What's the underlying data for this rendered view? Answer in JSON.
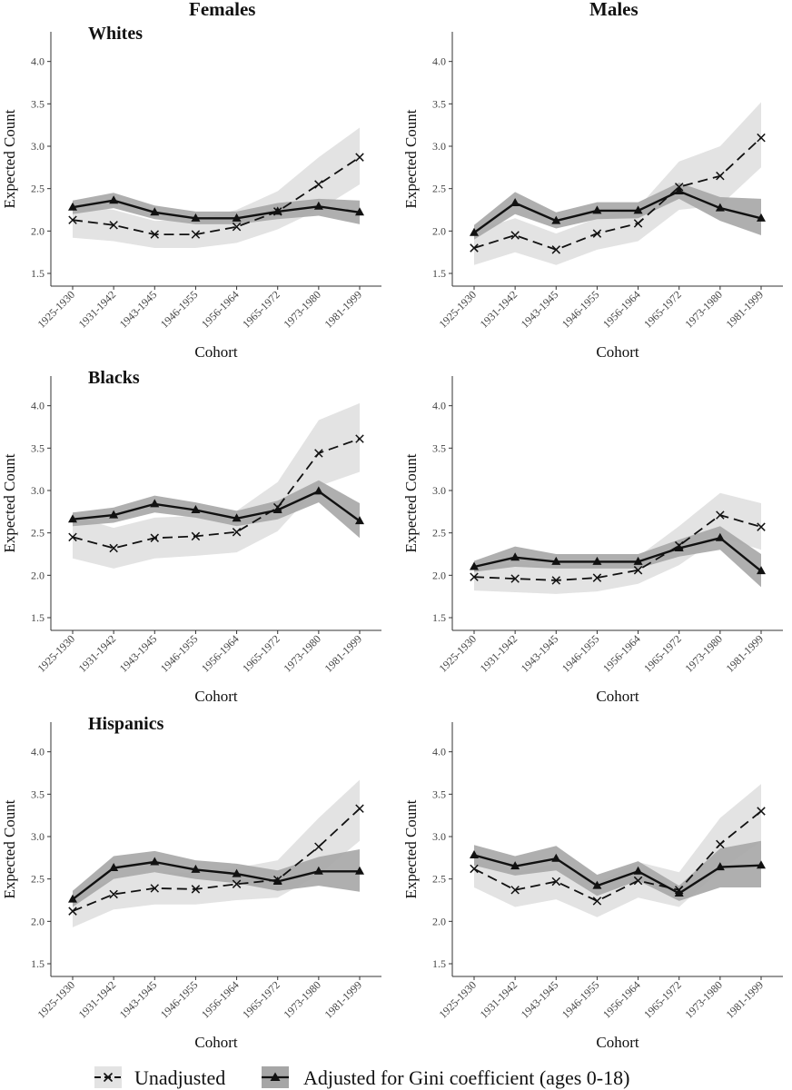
{
  "columns": [
    "Females",
    "Males"
  ],
  "groups": [
    "Whites",
    "Blacks",
    "Hispanics"
  ],
  "legend": {
    "unadjusted": "Unadjusted",
    "adjusted": "Adjusted for Gini coefficient (ages 0-18)"
  },
  "colors": {
    "unadjusted_band": "#e3e3e3",
    "adjusted_band": "#a6a6a6",
    "line": "#111111"
  },
  "chart_data": [
    {
      "type": "line",
      "group": "Whites",
      "sex": "Females",
      "title": "Whites",
      "xlabel": "Cohort",
      "ylabel": "Expected Count",
      "ylim": [
        1.35,
        4.35
      ],
      "yticks": [
        1.5,
        2.0,
        2.5,
        3.0,
        3.5,
        4.0
      ],
      "categories": [
        "1925-1930",
        "1931-1942",
        "1943-1945",
        "1946-1955",
        "1956-1964",
        "1965-1972",
        "1973-1980",
        "1981-1999"
      ],
      "series": [
        {
          "name": "Unadjusted",
          "values": [
            2.13,
            2.07,
            1.96,
            1.96,
            2.05,
            2.23,
            2.55,
            2.87
          ],
          "lower": [
            1.92,
            1.88,
            1.8,
            1.8,
            1.86,
            2.02,
            2.25,
            2.55
          ],
          "upper": [
            2.3,
            2.25,
            2.12,
            2.13,
            2.25,
            2.47,
            2.87,
            3.22
          ]
        },
        {
          "name": "Adjusted for Gini coefficient (ages 0-18)",
          "values": [
            2.28,
            2.36,
            2.22,
            2.15,
            2.15,
            2.23,
            2.29,
            2.22
          ],
          "lower": [
            2.2,
            2.27,
            2.14,
            2.08,
            2.08,
            2.14,
            2.18,
            2.08
          ],
          "upper": [
            2.36,
            2.45,
            2.3,
            2.23,
            2.23,
            2.33,
            2.38,
            2.36
          ]
        }
      ]
    },
    {
      "type": "line",
      "group": "Whites",
      "sex": "Males",
      "title": "",
      "xlabel": "Cohort",
      "ylabel": "Expected Count",
      "ylim": [
        1.35,
        4.35
      ],
      "yticks": [
        1.5,
        2.0,
        2.5,
        3.0,
        3.5,
        4.0
      ],
      "categories": [
        "1925-1930",
        "1931-1942",
        "1943-1945",
        "1946-1955",
        "1956-1964",
        "1965-1972",
        "1973-1980",
        "1981-1999"
      ],
      "series": [
        {
          "name": "Unadjusted",
          "values": [
            1.8,
            1.95,
            1.78,
            1.97,
            2.09,
            2.52,
            2.65,
            3.1
          ],
          "lower": [
            1.6,
            1.75,
            1.6,
            1.78,
            1.88,
            2.25,
            2.3,
            2.75
          ],
          "upper": [
            2.0,
            2.15,
            1.97,
            2.15,
            2.28,
            2.82,
            3.0,
            3.52
          ]
        },
        {
          "name": "Adjusted for Gini coefficient (ages 0-18)",
          "values": [
            1.98,
            2.33,
            2.12,
            2.24,
            2.24,
            2.47,
            2.27,
            2.15
          ],
          "lower": [
            1.9,
            2.2,
            2.03,
            2.14,
            2.15,
            2.38,
            2.12,
            1.95
          ],
          "upper": [
            2.07,
            2.46,
            2.22,
            2.34,
            2.34,
            2.57,
            2.4,
            2.38
          ]
        }
      ]
    },
    {
      "type": "line",
      "group": "Blacks",
      "sex": "Females",
      "title": "Blacks",
      "xlabel": "Cohort",
      "ylabel": "Expected Count",
      "ylim": [
        1.35,
        4.35
      ],
      "yticks": [
        1.5,
        2.0,
        2.5,
        3.0,
        3.5,
        4.0
      ],
      "categories": [
        "1925-1930",
        "1931-1942",
        "1943-1945",
        "1946-1955",
        "1956-1964",
        "1965-1972",
        "1973-1980",
        "1981-1999"
      ],
      "series": [
        {
          "name": "Unadjusted",
          "values": [
            2.45,
            2.32,
            2.44,
            2.46,
            2.51,
            2.8,
            3.44,
            3.61
          ],
          "lower": [
            2.2,
            2.08,
            2.2,
            2.23,
            2.27,
            2.52,
            3.05,
            3.22
          ],
          "upper": [
            2.7,
            2.56,
            2.68,
            2.7,
            2.76,
            3.1,
            3.83,
            4.03
          ]
        },
        {
          "name": "Adjusted for Gini coefficient (ages 0-18)",
          "values": [
            2.66,
            2.71,
            2.84,
            2.77,
            2.67,
            2.77,
            2.99,
            2.64
          ],
          "lower": [
            2.58,
            2.62,
            2.74,
            2.68,
            2.58,
            2.66,
            2.86,
            2.44
          ],
          "upper": [
            2.74,
            2.8,
            2.94,
            2.86,
            2.76,
            2.88,
            3.12,
            2.85
          ]
        }
      ]
    },
    {
      "type": "line",
      "group": "Blacks",
      "sex": "Males",
      "title": "",
      "xlabel": "Cohort",
      "ylabel": "Expected Count",
      "ylim": [
        1.35,
        4.35
      ],
      "yticks": [
        1.5,
        2.0,
        2.5,
        3.0,
        3.5,
        4.0
      ],
      "categories": [
        "1925-1930",
        "1931-1942",
        "1943-1945",
        "1946-1955",
        "1956-1964",
        "1965-1972",
        "1973-1980",
        "1981-1999"
      ],
      "series": [
        {
          "name": "Unadjusted",
          "values": [
            1.98,
            1.96,
            1.94,
            1.97,
            2.06,
            2.35,
            2.71,
            2.57
          ],
          "lower": [
            1.82,
            1.8,
            1.78,
            1.81,
            1.9,
            2.12,
            2.45,
            2.3
          ],
          "upper": [
            2.14,
            2.12,
            2.1,
            2.13,
            2.22,
            2.58,
            2.97,
            2.85
          ]
        },
        {
          "name": "Adjusted for Gini coefficient (ages 0-18)",
          "values": [
            2.1,
            2.21,
            2.16,
            2.16,
            2.16,
            2.32,
            2.44,
            2.05
          ],
          "lower": [
            2.04,
            2.1,
            2.08,
            2.08,
            2.08,
            2.22,
            2.3,
            1.86
          ],
          "upper": [
            2.17,
            2.34,
            2.25,
            2.25,
            2.25,
            2.42,
            2.58,
            2.25
          ]
        }
      ]
    },
    {
      "type": "line",
      "group": "Hispanics",
      "sex": "Females",
      "title": "Hispanics",
      "xlabel": "Cohort",
      "ylabel": "Expected Count",
      "ylim": [
        1.35,
        4.35
      ],
      "yticks": [
        1.5,
        2.0,
        2.5,
        3.0,
        3.5,
        4.0
      ],
      "categories": [
        "1925-1930",
        "1931-1942",
        "1943-1945",
        "1946-1955",
        "1956-1964",
        "1965-1972",
        "1973-1980",
        "1981-1999"
      ],
      "series": [
        {
          "name": "Unadjusted",
          "values": [
            2.12,
            2.32,
            2.39,
            2.38,
            2.44,
            2.49,
            2.88,
            3.33
          ],
          "lower": [
            1.93,
            2.14,
            2.2,
            2.2,
            2.25,
            2.28,
            2.55,
            2.95
          ],
          "upper": [
            2.3,
            2.5,
            2.58,
            2.57,
            2.63,
            2.72,
            3.22,
            3.67
          ]
        },
        {
          "name": "Adjusted for Gini coefficient (ages 0-18)",
          "values": [
            2.26,
            2.63,
            2.7,
            2.61,
            2.56,
            2.47,
            2.59,
            2.59
          ],
          "lower": [
            2.17,
            2.5,
            2.58,
            2.5,
            2.45,
            2.36,
            2.42,
            2.35
          ],
          "upper": [
            2.36,
            2.77,
            2.83,
            2.72,
            2.68,
            2.6,
            2.76,
            2.85
          ]
        }
      ]
    },
    {
      "type": "line",
      "group": "Hispanics",
      "sex": "Males",
      "title": "",
      "xlabel": "Cohort",
      "ylabel": "Expected Count",
      "ylim": [
        1.35,
        4.35
      ],
      "yticks": [
        1.5,
        2.0,
        2.5,
        3.0,
        3.5,
        4.0
      ],
      "categories": [
        "1925-1930",
        "1931-1942",
        "1943-1945",
        "1946-1955",
        "1956-1964",
        "1965-1972",
        "1973-1980",
        "1981-1999"
      ],
      "series": [
        {
          "name": "Unadjusted",
          "values": [
            2.62,
            2.37,
            2.47,
            2.24,
            2.48,
            2.37,
            2.91,
            3.3
          ],
          "lower": [
            2.4,
            2.17,
            2.26,
            2.05,
            2.28,
            2.17,
            2.6,
            2.95
          ],
          "upper": [
            2.84,
            2.58,
            2.68,
            2.45,
            2.7,
            2.58,
            3.22,
            3.62
          ]
        },
        {
          "name": "Adjusted for Gini coefficient (ages 0-18)",
          "values": [
            2.78,
            2.65,
            2.74,
            2.42,
            2.59,
            2.33,
            2.64,
            2.66
          ],
          "lower": [
            2.66,
            2.54,
            2.6,
            2.3,
            2.48,
            2.24,
            2.4,
            2.4
          ],
          "upper": [
            2.9,
            2.77,
            2.89,
            2.55,
            2.71,
            2.42,
            2.86,
            2.95
          ]
        }
      ]
    }
  ]
}
